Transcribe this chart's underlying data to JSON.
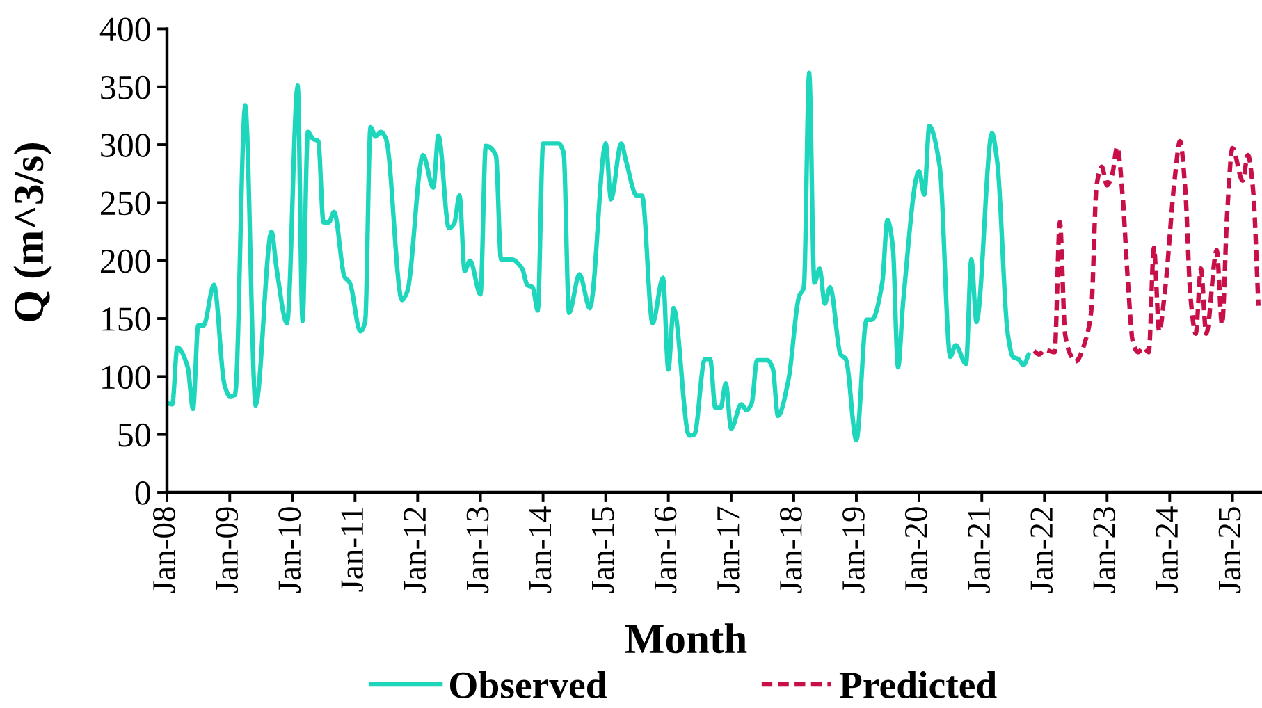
{
  "chart_data": {
    "type": "line",
    "xlabel": "Month",
    "ylabel": "Q (m^3/s)",
    "xlim": [
      "2008-01-01",
      "2025-06-22"
    ],
    "ylim": [
      0,
      400
    ],
    "yticks": [
      0,
      50,
      100,
      150,
      200,
      250,
      300,
      350,
      400
    ],
    "xticks": [
      {
        "value": "2008-01",
        "label": "Jan-08"
      },
      {
        "value": "2009-01",
        "label": "Jan-09"
      },
      {
        "value": "2010-01",
        "label": "Jan-10"
      },
      {
        "value": "2011-01",
        "label": "Jan-11"
      },
      {
        "value": "2012-01",
        "label": "Jan-12"
      },
      {
        "value": "2013-01",
        "label": "Jan-13"
      },
      {
        "value": "2014-01",
        "label": "Jan-14"
      },
      {
        "value": "2015-01",
        "label": "Jan-15"
      },
      {
        "value": "2016-01",
        "label": "Jan-16"
      },
      {
        "value": "2017-01",
        "label": "Jan-17"
      },
      {
        "value": "2018-01",
        "label": "Jan-18"
      },
      {
        "value": "2019-01",
        "label": "Jan-19"
      },
      {
        "value": "2020-01",
        "label": "Jan-20"
      },
      {
        "value": "2021-01",
        "label": "Jan-21"
      },
      {
        "value": "2022-01",
        "label": "Jan-22"
      },
      {
        "value": "2023-01",
        "label": "Jan-23"
      },
      {
        "value": "2024-01",
        "label": "Jan-24"
      },
      {
        "value": "2025-01",
        "label": "Jan-25"
      }
    ],
    "grid": false,
    "legend": "bottom",
    "series": [
      {
        "name": "Observed",
        "color": "#1ed6bb",
        "line_style": "solid",
        "x": [
          "2008-01",
          "2008-02",
          "2008-03",
          "2008-05",
          "2008-06",
          "2008-07",
          "2008-08",
          "2008-10",
          "2008-12",
          "2009-01",
          "2009-02",
          "2009-04",
          "2009-06",
          "2009-09",
          "2009-10",
          "2009-12",
          "2010-02",
          "2010-03",
          "2010-04",
          "2010-05",
          "2010-06",
          "2010-07",
          "2010-08",
          "2010-09",
          "2010-11",
          "2010-12",
          "2011-02",
          "2011-03",
          "2011-04",
          "2011-05",
          "2011-06",
          "2011-07",
          "2011-10",
          "2011-11",
          "2012-02",
          "2012-04",
          "2012-05",
          "2012-07",
          "2012-08",
          "2012-09",
          "2012-10",
          "2012-11",
          "2013-01",
          "2013-02",
          "2013-04",
          "2013-05",
          "2013-07",
          "2013-09",
          "2013-10",
          "2013-11",
          "2013-12",
          "2014-01",
          "2014-04",
          "2014-05",
          "2014-06",
          "2014-08",
          "2014-10",
          "2015-01",
          "2015-02",
          "2015-04",
          "2015-05",
          "2015-07",
          "2015-08",
          "2015-10",
          "2015-12",
          "2016-01",
          "2016-02",
          "2016-05",
          "2016-06",
          "2016-08",
          "2016-09",
          "2016-10",
          "2016-11",
          "2016-12",
          "2017-01",
          "2017-03",
          "2017-04",
          "2017-05",
          "2017-06",
          "2017-08",
          "2017-09",
          "2017-10",
          "2017-12",
          "2018-02",
          "2018-03",
          "2018-04",
          "2018-05",
          "2018-06",
          "2018-07",
          "2018-08",
          "2018-10",
          "2018-11",
          "2019-01",
          "2019-03",
          "2019-04",
          "2019-06",
          "2019-07",
          "2019-08",
          "2019-09",
          "2019-10",
          "2020-01",
          "2020-02",
          "2020-03",
          "2020-05",
          "2020-07",
          "2020-08",
          "2020-10",
          "2020-11",
          "2020-12",
          "2021-03",
          "2021-04",
          "2021-06",
          "2021-07",
          "2021-08",
          "2021-09",
          "2021-10"
        ],
        "values": [
          77,
          76,
          125,
          108,
          72,
          144,
          144,
          179,
          93,
          83,
          84,
          334,
          75,
          225,
          193,
          146,
          351,
          148,
          311,
          305,
          303,
          233,
          233,
          242,
          186,
          181,
          139,
          147,
          315,
          307,
          311,
          305,
          166,
          173,
          291,
          263,
          308,
          228,
          232,
          256,
          191,
          200,
          171,
          299,
          291,
          201,
          201,
          193,
          179,
          177,
          157,
          301,
          301,
          293,
          155,
          188,
          159,
          301,
          253,
          301,
          285,
          256,
          256,
          146,
          185,
          106,
          159,
          49,
          50,
          115,
          115,
          73,
          73,
          94,
          55,
          76,
          71,
          77,
          114,
          114,
          107,
          66,
          97,
          169,
          177,
          362,
          181,
          193,
          163,
          177,
          119,
          115,
          45,
          149,
          149,
          181,
          235,
          213,
          108,
          165,
          277,
          257,
          316,
          281,
          117,
          127,
          111,
          201,
          147,
          310,
          285,
          137,
          117,
          115,
          110,
          119
        ]
      },
      {
        "name": "Predicted",
        "color": "#c80f47",
        "line_style": "dashed",
        "x": [
          "2021-11",
          "2021-12",
          "2022-01",
          "2022-03",
          "2022-04",
          "2022-05",
          "2022-06",
          "2022-07",
          "2022-09",
          "2022-10",
          "2022-11",
          "2022-12",
          "2023-01",
          "2023-02",
          "2023-03",
          "2023-04",
          "2023-05",
          "2023-06",
          "2023-07",
          "2023-08",
          "2023-09",
          "2023-10",
          "2023-11",
          "2023-12",
          "2024-02",
          "2024-03",
          "2024-04",
          "2024-05",
          "2024-06",
          "2024-07",
          "2024-08",
          "2024-10",
          "2024-11",
          "2024-12",
          "2025-01",
          "2025-03",
          "2025-04",
          "2025-05",
          "2025-06"
        ],
        "values": [
          122,
          119,
          123,
          121,
          233,
          137,
          119,
          113,
          133,
          157,
          265,
          281,
          265,
          275,
          298,
          257,
          185,
          129,
          121,
          125,
          121,
          211,
          139,
          169,
          273,
          303,
          261,
          169,
          137,
          193,
          137,
          209,
          145,
          241,
          297,
          269,
          291,
          261,
          161
        ]
      }
    ]
  }
}
